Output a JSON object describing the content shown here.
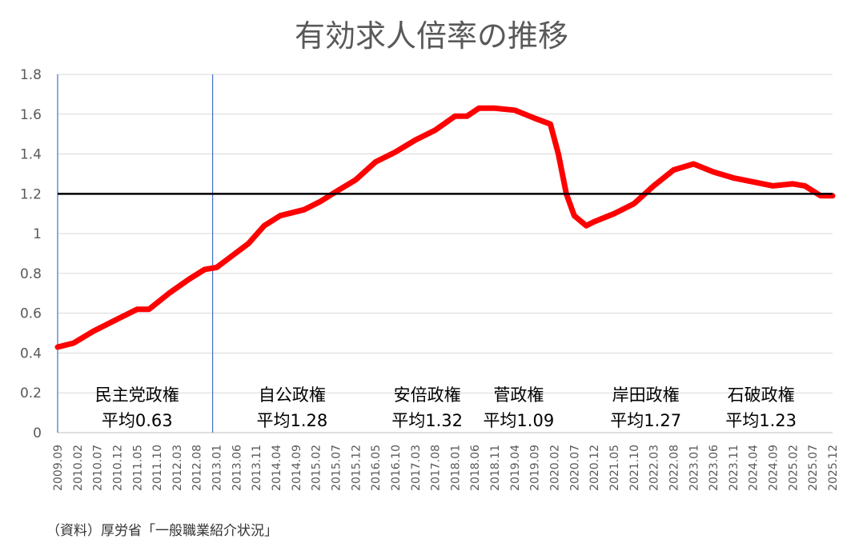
{
  "chart_data": {
    "type": "line",
    "title": "有効求人倍率の推移",
    "xlabel": "",
    "ylabel": "",
    "ylim": [
      0,
      1.8
    ],
    "yticks": [
      "0",
      "0.2",
      "0.4",
      "0.6",
      "0.8",
      "1",
      "1.2",
      "1.4",
      "1.6",
      "1.8"
    ],
    "x_start": "2009.09",
    "x_end": "2025.12",
    "x_tick_labels": [
      "2009.09",
      "2010.02",
      "2010.07",
      "2010.12",
      "2011.05",
      "2011.10",
      "2012.03",
      "2012.08",
      "2013.01",
      "2013.06",
      "2013.11",
      "2014.04",
      "2014.09",
      "2015.02",
      "2015.07",
      "2015.12",
      "2016.05",
      "2016.10",
      "2017.03",
      "2017.08",
      "2018.01",
      "2018.06",
      "2018.11",
      "2019.04",
      "2019.09",
      "2020.02",
      "2020.07",
      "2020.12",
      "2021.05",
      "2021.10",
      "2022.03",
      "2022.08",
      "2023.01",
      "2023.06",
      "2023.11",
      "2024.04",
      "2024.09",
      "2025.02",
      "2025.07",
      "2025.12"
    ],
    "series": [
      {
        "color": "#ff0000",
        "points": [
          [
            "2009.09",
            0.43
          ],
          [
            "2010.01",
            0.45
          ],
          [
            "2010.06",
            0.51
          ],
          [
            "2011.01",
            0.58
          ],
          [
            "2011.05",
            0.62
          ],
          [
            "2011.08",
            0.62
          ],
          [
            "2012.01",
            0.7
          ],
          [
            "2012.06",
            0.77
          ],
          [
            "2012.10",
            0.82
          ],
          [
            "2013.01",
            0.83
          ],
          [
            "2013.05",
            0.89
          ],
          [
            "2013.09",
            0.95
          ],
          [
            "2014.01",
            1.04
          ],
          [
            "2014.05",
            1.09
          ],
          [
            "2014.11",
            1.12
          ],
          [
            "2015.03",
            1.16
          ],
          [
            "2015.07",
            1.21
          ],
          [
            "2015.12",
            1.27
          ],
          [
            "2016.05",
            1.36
          ],
          [
            "2016.10",
            1.41
          ],
          [
            "2017.03",
            1.47
          ],
          [
            "2017.08",
            1.52
          ],
          [
            "2018.01",
            1.59
          ],
          [
            "2018.04",
            1.59
          ],
          [
            "2018.07",
            1.63
          ],
          [
            "2018.11",
            1.63
          ],
          [
            "2019.04",
            1.62
          ],
          [
            "2019.09",
            1.58
          ],
          [
            "2020.01",
            1.55
          ],
          [
            "2020.03",
            1.4
          ],
          [
            "2020.05",
            1.2
          ],
          [
            "2020.07",
            1.09
          ],
          [
            "2020.10",
            1.04
          ],
          [
            "2020.12",
            1.06
          ],
          [
            "2021.05",
            1.1
          ],
          [
            "2021.10",
            1.15
          ],
          [
            "2022.03",
            1.24
          ],
          [
            "2022.08",
            1.32
          ],
          [
            "2023.01",
            1.35
          ],
          [
            "2023.06",
            1.31
          ],
          [
            "2023.11",
            1.28
          ],
          [
            "2024.04",
            1.26
          ],
          [
            "2024.09",
            1.24
          ],
          [
            "2025.02",
            1.25
          ],
          [
            "2025.05",
            1.24
          ],
          [
            "2025.09",
            1.19
          ],
          [
            "2025.12",
            1.19
          ]
        ]
      }
    ],
    "reference_line": {
      "y": 1.2,
      "color": "#000000"
    },
    "divider_lines": [
      {
        "x": "2009.09",
        "color": "#4472c4"
      },
      {
        "x": "2012.12",
        "color": "#4472c4"
      }
    ],
    "annotations": [
      {
        "x": "2011.05",
        "line1": "民主党政権",
        "line2": "平均0.63"
      },
      {
        "x": "2014.08",
        "line1": "自公政権",
        "line2": "平均1.28"
      },
      {
        "x": "2017.06",
        "line1": "安倍政権",
        "line2": "平均1.32"
      },
      {
        "x": "2019.05",
        "line1": "菅政権",
        "line2": "平均1.09"
      },
      {
        "x": "2022.01",
        "line1": "岸田政権",
        "line2": "平均1.27"
      },
      {
        "x": "2024.06",
        "line1": "石破政権",
        "line2": "平均1.23"
      }
    ],
    "grid": true,
    "source": "（資料）厚労省「一般職業紹介状況」"
  }
}
